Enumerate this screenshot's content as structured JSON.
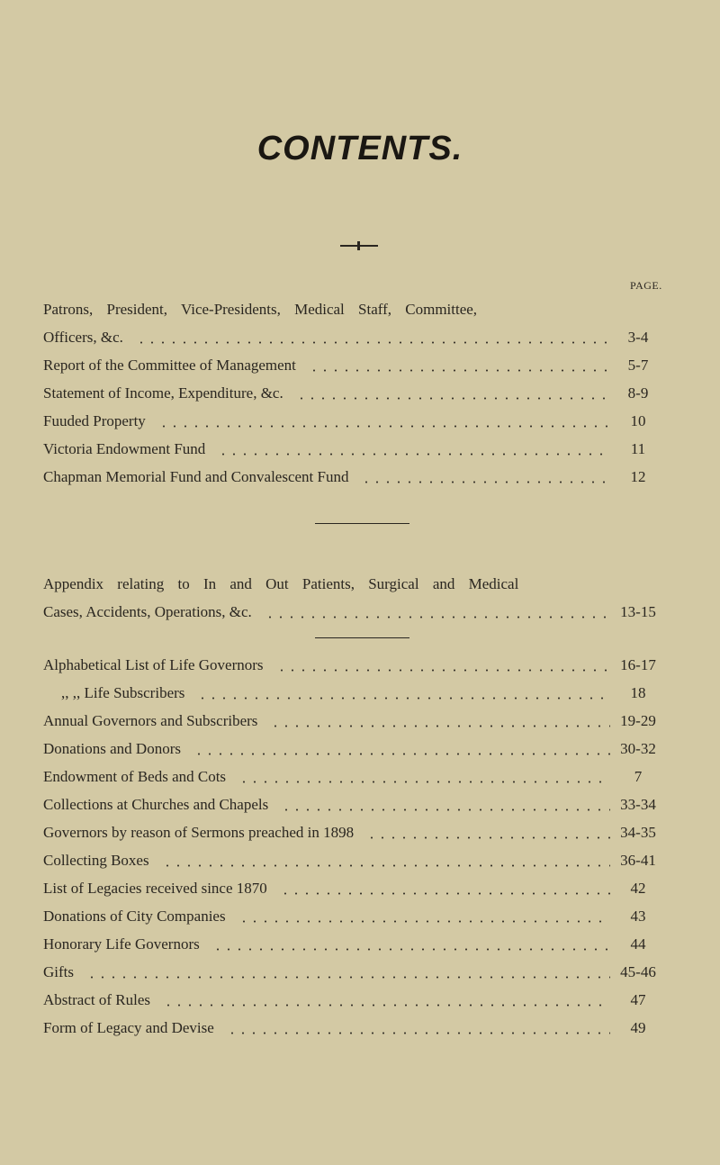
{
  "title": "CONTENTS.",
  "page_header": "PAGE.",
  "section1": [
    {
      "label": "Patrons, President, Vice-Presidents, Medical Staff, Committee,",
      "page": ""
    },
    {
      "label": "Officers, &c.",
      "page": "3-4"
    },
    {
      "label": "Report of the Committee of Management",
      "page": "5-7"
    },
    {
      "label": "Statement of Income, Expenditure, &c.",
      "page": "8-9"
    },
    {
      "label": "Fuuded Property",
      "page": "10"
    },
    {
      "label": "Victoria Endowment Fund",
      "page": "11"
    },
    {
      "label": "Chapman Memorial Fund and Convalescent Fund",
      "page": "12"
    }
  ],
  "section2": [
    {
      "label": "Appendix relating to In and Out Patients, Surgical and Medical",
      "page": ""
    },
    {
      "label": "Cases, Accidents, Operations, &c.",
      "page": "13-15"
    }
  ],
  "section3": [
    {
      "label": "Alphabetical List of Life Governors",
      "page": "16-17"
    },
    {
      "label": ",,  ,,  Life Subscribers",
      "page": "18"
    },
    {
      "label": "Annual Governors and Subscribers",
      "page": "19-29"
    },
    {
      "label": "Donations and Donors",
      "page": "30-32"
    },
    {
      "label": "Endowment of Beds and Cots",
      "page": "7"
    },
    {
      "label": "Collections at Churches and Chapels",
      "page": "33-34"
    },
    {
      "label": "Governors by reason of Sermons preached in 1898",
      "page": "34-35"
    },
    {
      "label": "Collecting Boxes",
      "page": "36-41"
    },
    {
      "label": "List of Legacies received since 1870",
      "page": "42"
    },
    {
      "label": "Donations of City Companies",
      "page": "43"
    },
    {
      "label": "Honorary Life Governors",
      "page": "44"
    },
    {
      "label": "Gifts",
      "page": "45-46"
    },
    {
      "label": "Abstract of Rules",
      "page": "47"
    },
    {
      "label": "Form of Legacy and Devise",
      "page": "49"
    }
  ]
}
